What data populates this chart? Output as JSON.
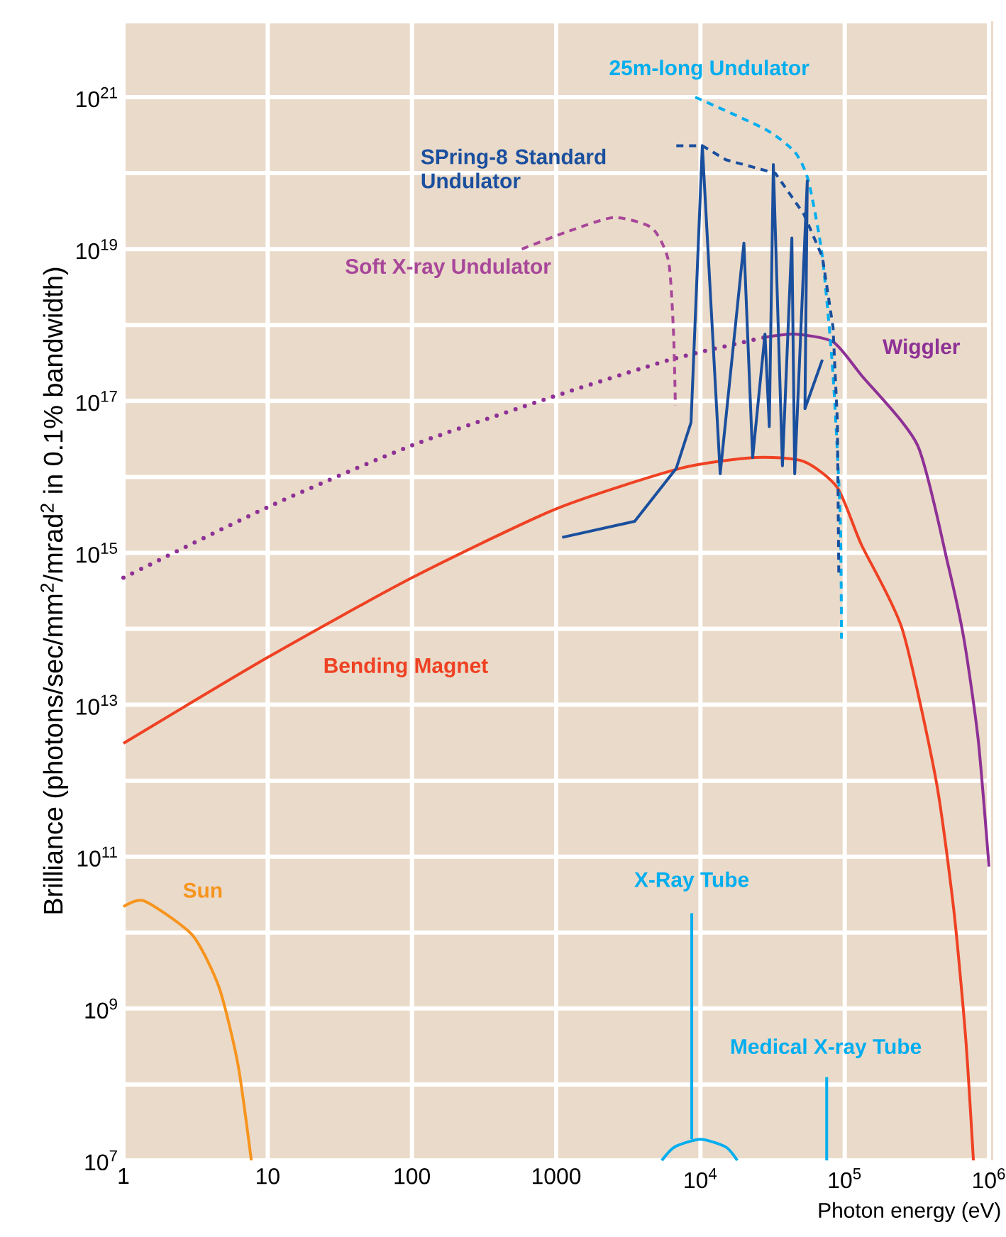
{
  "chart_data": {
    "type": "line",
    "log": "xy",
    "grid": true,
    "xlabel": "Photon energy (eV)",
    "ylabel": "Brilliance (photons/sec/mm$^{2}$/mrad$^{2}$ in 0.1% bandwidth)",
    "xlim": [
      1,
      1000000
    ],
    "ylim": [
      10000000,
      1e+22
    ],
    "xticks": [
      1,
      10,
      100,
      1000,
      {
        "value": 10000,
        "label": "10$^{4}$"
      },
      {
        "value": 100000,
        "label": "10$^{5}$"
      },
      {
        "value": 1000000,
        "label": "10$^{6}$"
      }
    ],
    "yticks": [
      {
        "value": 10000000.0,
        "label": "10$^{7}$"
      },
      {
        "value": 100000000.0,
        "label": null
      },
      {
        "value": 1000000000.0,
        "label": "10$^{9}$"
      },
      {
        "value": 10000000000.0,
        "label": null
      },
      {
        "value": 100000000000.0,
        "label": "10$^{11}$"
      },
      {
        "value": 1000000000000.0,
        "label": null
      },
      {
        "value": 10000000000000.0,
        "label": "10$^{13}$"
      },
      {
        "value": 100000000000000.0,
        "label": null
      },
      {
        "value": 1000000000000000.0,
        "label": "10$^{15}$"
      },
      {
        "value": 1e+16,
        "label": null
      },
      {
        "value": 1e+17,
        "label": "10$^{17}$"
      },
      {
        "value": 1e+18,
        "label": null
      },
      {
        "value": 1e+19,
        "label": "10$^{19}$"
      },
      {
        "value": 1e+20,
        "label": null
      },
      {
        "value": 1e+21,
        "label": "10$^{21}$"
      },
      {
        "value": 1e+22,
        "label": null
      }
    ],
    "series": [
      {
        "name": "Sun",
        "color": "#f7941d",
        "line_style": "solid",
        "x": [
          1,
          1.4,
          3,
          4.6,
          6.2,
          7.7
        ],
        "values": [
          22000000000.0,
          26000000000.0,
          9300000000.0,
          1900000000.0,
          190000000.0,
          10000000.0
        ]
      },
      {
        "name": "Bending Magnet",
        "color": "#ef4123",
        "line_style": "solid",
        "x": [
          1,
          10,
          100,
          1000,
          7300,
          24000,
          52000,
          89000,
          130000,
          250000,
          430000,
          570000,
          690000,
          780000
        ],
        "values": [
          3100000000000.0,
          42000000000000.0,
          470000000000000.0,
          3800000000000000.0,
          1.3e+16,
          1.8e+16,
          1.6e+16,
          7200000000000000.0,
          1300000000000000.0,
          100000000000000.0,
          1000000000000.0,
          20000000000.0,
          400000000.0,
          10000000.0
        ]
      },
      {
        "color": "#8e3196",
        "line_style": "dotted",
        "x": [
          1,
          10,
          100,
          900,
          6200,
          28000
        ],
        "values": [
          470000000000000.0,
          4000000000000000.0,
          2.6e+16,
          1.1e+17,
          3.5e+17,
          6.9e+17
        ]
      },
      {
        "name": "Wiggler",
        "color": "#8e3196",
        "line_style": "solid",
        "x": [
          28000,
          45000,
          83000,
          130000,
          320000,
          520000,
          670000,
          840000,
          1000000
        ],
        "values": [
          6.9e+17,
          7.6e+17,
          6e+17,
          2.2e+17,
          2.6e+16,
          700000000000000.0,
          74000000000000.0,
          3600000000000.0,
          74000000000.0
        ]
      },
      {
        "name": "Soft X-ray Undulator",
        "color": "#a8479a",
        "line_style": "dashed",
        "x": [
          577,
          1200,
          2500,
          4600,
          6000,
          6500,
          6700
        ],
        "values": [
          1e+19,
          1.7e+19,
          2.6e+19,
          1.9e+19,
          7e+18,
          8.1e+17,
          8.7e+16
        ]
      },
      {
        "name": "25m-long Undulator",
        "color": "#00aeef",
        "line_style": "dashed",
        "x": [
          9200,
          28000,
          45000,
          56000,
          70000,
          83000,
          93000,
          95000
        ],
        "values": [
          1e+21,
          3.8e+20,
          1.9e+20,
          7.9e+19,
          7.9e+18,
          2.2e+17,
          3100000000000000.0,
          74000000000000.0
        ]
      },
      {
        "color": "#1a4f9e",
        "line_style": "dashed",
        "x": [
          6800,
          10300,
          15000,
          33000,
          52000,
          70000,
          83000,
          89000,
          91000
        ],
        "values": [
          2.3e+20,
          2.3e+20,
          1.5e+20,
          1e+20,
          2.9e+19,
          7.9e+18,
          9.3e+17,
          5.2e+16,
          470000000000000.0
        ]
      },
      {
        "name": "SPring-8 Standard Undulator",
        "color": "#1a4f9e",
        "line_style": "solid",
        "x": [
          1100,
          3500,
          6800,
          8600,
          10300,
          13700,
          20000,
          23000,
          28000,
          30000,
          32000,
          37000,
          43000,
          45000,
          55000,
          53000,
          70000
        ],
        "values": [
          1600000000000000.0,
          2600000000000000.0,
          1.3e+16,
          5.2e+16,
          2.3e+20,
          1.1e+16,
          1.2e+19,
          1.8e+16,
          7.6e+17,
          4.6e+16,
          1.3e+20,
          1.4e+16,
          1.4e+19,
          1.1e+16,
          7.9e+19,
          7.9e+16,
          3.5e+17
        ]
      },
      {
        "name": "X-Ray Tube",
        "color": "#00aeef",
        "line_style": "solid",
        "x": [
          5400,
          6600,
          10000,
          15000,
          18000
        ],
        "values": [
          10000000.0,
          15000000.0,
          19000000.0,
          15000000.0,
          10000000.0
        ]
      }
    ],
    "annotations": [
      "Medical X-ray Tube"
    ]
  }
}
